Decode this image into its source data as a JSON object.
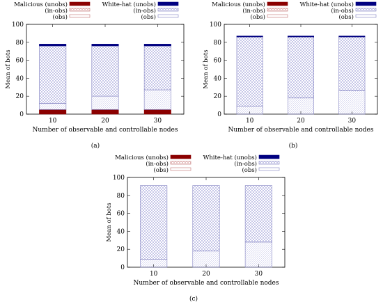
{
  "legend": {
    "malicious_unobs": "Malicious (unobs)",
    "malicious_inobs": "(in-obs)",
    "malicious_obs": "(obs)",
    "whitehat_unobs": "White-hat (unobs)",
    "whitehat_inobs": "(in-obs)",
    "whitehat_obs": "(obs)"
  },
  "colors": {
    "malicious_solid": "#8b0000",
    "whitehat_solid": "#000080",
    "malicious_hatch": "#d08a8a",
    "whitehat_hatch": "#8c8cd0",
    "frame": "#000000"
  },
  "chart_data": [
    {
      "type": "bar",
      "stacked": true,
      "panel_label": "(a)",
      "xlabel": "Number of observable and controllable nodes",
      "ylabel": "Mean of bots",
      "ylim": [
        0,
        100
      ],
      "yticks": [
        0,
        20,
        40,
        60,
        80,
        100
      ],
      "categories": [
        "10",
        "20",
        "30"
      ],
      "series": [
        {
          "name": "Malicious (unobs)",
          "values": [
            5,
            5,
            5
          ]
        },
        {
          "name": "Malicious (in-obs)",
          "values": [
            0,
            0,
            0
          ]
        },
        {
          "name": "Malicious (obs)",
          "values": [
            0,
            0,
            0
          ]
        },
        {
          "name": "White-hat (obs)",
          "values": [
            7,
            15,
            22
          ]
        },
        {
          "name": "White-hat (in-obs)",
          "values": [
            64,
            56,
            49
          ]
        },
        {
          "name": "White-hat (unobs)",
          "values": [
            2,
            2,
            2
          ]
        }
      ]
    },
    {
      "type": "bar",
      "stacked": true,
      "panel_label": "(b)",
      "xlabel": "Number of observable and controllable nodes",
      "ylabel": "Mean of bots",
      "ylim": [
        0,
        100
      ],
      "yticks": [
        0,
        20,
        40,
        60,
        80,
        100
      ],
      "categories": [
        "10",
        "20",
        "30"
      ],
      "series": [
        {
          "name": "Malicious (unobs)",
          "values": [
            0,
            0,
            0
          ]
        },
        {
          "name": "Malicious (in-obs)",
          "values": [
            0,
            0,
            0
          ]
        },
        {
          "name": "Malicious (obs)",
          "values": [
            0,
            0,
            0
          ]
        },
        {
          "name": "White-hat (obs)",
          "values": [
            9,
            18,
            26
          ]
        },
        {
          "name": "White-hat (in-obs)",
          "values": [
            77,
            68,
            60
          ]
        },
        {
          "name": "White-hat (unobs)",
          "values": [
            1,
            1,
            1
          ]
        }
      ]
    },
    {
      "type": "bar",
      "stacked": true,
      "panel_label": "(c)",
      "xlabel": "Number of observable and controllable nodes",
      "ylabel": "Mean of bots",
      "ylim": [
        0,
        100
      ],
      "yticks": [
        0,
        20,
        40,
        60,
        80,
        100
      ],
      "categories": [
        "10",
        "20",
        "30"
      ],
      "series": [
        {
          "name": "Malicious (unobs)",
          "values": [
            0,
            0,
            0
          ]
        },
        {
          "name": "Malicious (in-obs)",
          "values": [
            0,
            0,
            0
          ]
        },
        {
          "name": "Malicious (obs)",
          "values": [
            0,
            0,
            0
          ]
        },
        {
          "name": "White-hat (obs)",
          "values": [
            9,
            18,
            28
          ]
        },
        {
          "name": "White-hat (in-obs)",
          "values": [
            82,
            73,
            63
          ]
        },
        {
          "name": "White-hat (unobs)",
          "values": [
            0,
            0,
            0
          ]
        }
      ]
    }
  ]
}
